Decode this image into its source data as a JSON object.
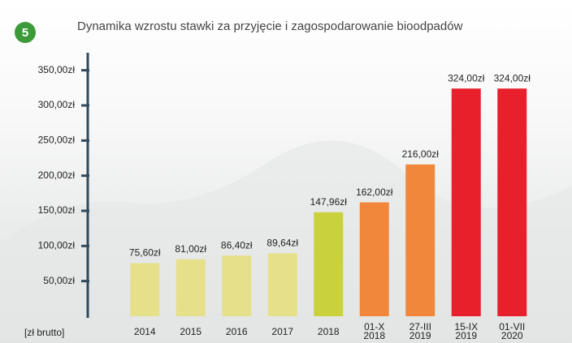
{
  "badge": "5",
  "chart_data": {
    "type": "bar",
    "title": "Dynamika wzrostu stawki za przyjęcie i zagospodarowanie bioodpadów",
    "y_label": "[zł brutto]",
    "categories": [
      "2014",
      "2015",
      "2016",
      "2017",
      "2018",
      "01-X 2018",
      "27-III 2019",
      "15-IX 2019",
      "01-VII 2020"
    ],
    "values": [
      75.6,
      81.0,
      86.4,
      89.64,
      147.96,
      162.0,
      216.0,
      324.0,
      324.0
    ],
    "value_labels": [
      "75,60zł",
      "81,00zł",
      "86,40zł",
      "89,64zł",
      "147,96zł",
      "162,00zł",
      "216,00zł",
      "324,00zł",
      "324,00zł"
    ],
    "colors": [
      "#e6e08a",
      "#e6e08a",
      "#e6e08a",
      "#e6e08a",
      "#c9d23c",
      "#f0873b",
      "#f0873b",
      "#e8202c",
      "#e8202c"
    ],
    "ylim": [
      0,
      375
    ],
    "yticks": [
      {
        "value": 50,
        "label": "50,00zł"
      },
      {
        "value": 100,
        "label": "100,00zł"
      },
      {
        "value": 150,
        "label": "150,00zł"
      },
      {
        "value": 200,
        "label": "200,00zł"
      },
      {
        "value": 250,
        "label": "250,00zł"
      },
      {
        "value": 300,
        "label": "300,00zł"
      },
      {
        "value": 350,
        "label": "350,00zł"
      }
    ]
  }
}
